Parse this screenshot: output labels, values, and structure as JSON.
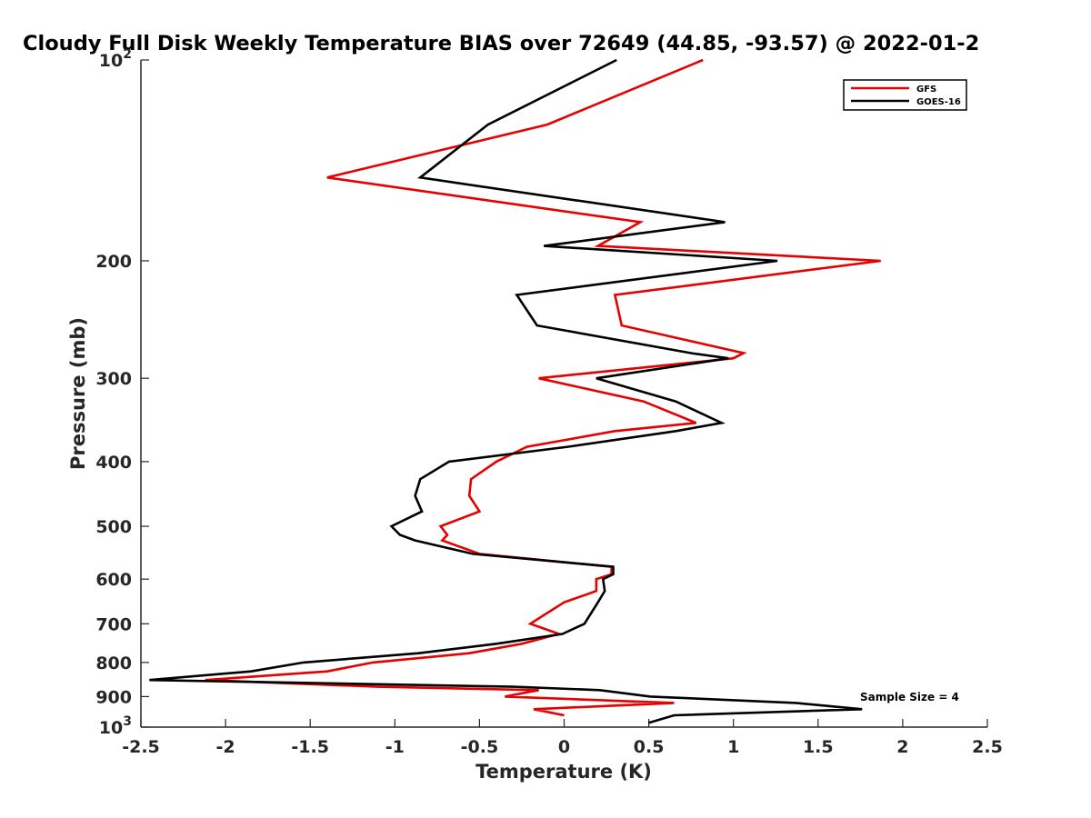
{
  "chart_data": {
    "type": "line",
    "title": "Cloudy Full Disk Weekly Temperature BIAS over 72649 (44.85, -93.57) @ 2022-01-2",
    "xlabel": "Temperature (K)",
    "ylabel": "Pressure (mb)",
    "xlim": [
      -2.5,
      2.5
    ],
    "ylim": [
      100,
      1000
    ],
    "y_scale": "log",
    "y_reversed": true,
    "grid": false,
    "legend_position": "top-right",
    "x_ticks": [
      {
        "value": -2.5,
        "label": "-2.5"
      },
      {
        "value": -2,
        "label": "-2"
      },
      {
        "value": -1.5,
        "label": "-1.5"
      },
      {
        "value": -1,
        "label": "-1"
      },
      {
        "value": -0.5,
        "label": "-0.5"
      },
      {
        "value": 0,
        "label": "0"
      },
      {
        "value": 0.5,
        "label": "0.5"
      },
      {
        "value": 1,
        "label": "1"
      },
      {
        "value": 1.5,
        "label": "1.5"
      },
      {
        "value": 2,
        "label": "2"
      },
      {
        "value": 2.5,
        "label": "2.5"
      }
    ],
    "y_ticks": [
      {
        "value": 100,
        "base": "10",
        "exp": "2"
      },
      {
        "value": 200,
        "base": "200",
        "exp": ""
      },
      {
        "value": 300,
        "base": "300",
        "exp": ""
      },
      {
        "value": 400,
        "base": "400",
        "exp": ""
      },
      {
        "value": 500,
        "base": "500",
        "exp": ""
      },
      {
        "value": 600,
        "base": "600",
        "exp": ""
      },
      {
        "value": 700,
        "base": "700",
        "exp": ""
      },
      {
        "value": 800,
        "base": "800",
        "exp": ""
      },
      {
        "value": 900,
        "base": "900",
        "exp": ""
      },
      {
        "value": 1000,
        "base": "10",
        "exp": "3"
      }
    ],
    "annotation": "Sample Size = 4",
    "series": [
      {
        "name": "GFS",
        "color": "#e60000",
        "points": [
          [
            0.82,
            100
          ],
          [
            -0.1,
            125
          ],
          [
            -1.4,
            150
          ],
          [
            0.45,
            175
          ],
          [
            0.2,
            190
          ],
          [
            1.87,
            200
          ],
          [
            0.3,
            225
          ],
          [
            0.34,
            250
          ],
          [
            1.06,
            275
          ],
          [
            1.0,
            280
          ],
          [
            -0.15,
            300
          ],
          [
            0.47,
            325
          ],
          [
            0.78,
            350
          ],
          [
            0.3,
            360
          ],
          [
            -0.22,
            380
          ],
          [
            -0.4,
            400
          ],
          [
            -0.55,
            425
          ],
          [
            -0.56,
            450
          ],
          [
            -0.5,
            475
          ],
          [
            -0.73,
            500
          ],
          [
            -0.69,
            515
          ],
          [
            -0.72,
            525
          ],
          [
            -0.5,
            550
          ],
          [
            0.28,
            575
          ],
          [
            0.28,
            590
          ],
          [
            0.19,
            600
          ],
          [
            0.19,
            625
          ],
          [
            0.0,
            650
          ],
          [
            -0.2,
            700
          ],
          [
            -0.03,
            725
          ],
          [
            -0.25,
            750
          ],
          [
            -0.56,
            775
          ],
          [
            -1.13,
            800
          ],
          [
            -1.4,
            825
          ],
          [
            -2.12,
            850
          ],
          [
            -1.1,
            870
          ],
          [
            -0.15,
            880
          ],
          [
            -0.35,
            900
          ],
          [
            0.65,
            920
          ],
          [
            -0.18,
            940
          ],
          [
            0.0,
            960
          ]
        ]
      },
      {
        "name": "GOES-16",
        "color": "#000000",
        "points": [
          [
            0.31,
            100
          ],
          [
            -0.45,
            125
          ],
          [
            -0.85,
            150
          ],
          [
            0.95,
            175
          ],
          [
            -0.12,
            190
          ],
          [
            1.26,
            200
          ],
          [
            -0.28,
            225
          ],
          [
            -0.16,
            250
          ],
          [
            0.75,
            275
          ],
          [
            0.97,
            280
          ],
          [
            0.19,
            300
          ],
          [
            0.66,
            325
          ],
          [
            0.93,
            350
          ],
          [
            0.66,
            360
          ],
          [
            0.02,
            380
          ],
          [
            -0.68,
            400
          ],
          [
            -0.85,
            425
          ],
          [
            -0.88,
            450
          ],
          [
            -0.84,
            475
          ],
          [
            -1.02,
            500
          ],
          [
            -0.97,
            515
          ],
          [
            -0.88,
            525
          ],
          [
            -0.54,
            550
          ],
          [
            0.29,
            575
          ],
          [
            0.29,
            590
          ],
          [
            0.23,
            600
          ],
          [
            0.24,
            625
          ],
          [
            0.2,
            650
          ],
          [
            0.12,
            700
          ],
          [
            -0.01,
            725
          ],
          [
            -0.4,
            750
          ],
          [
            -0.86,
            775
          ],
          [
            -1.54,
            800
          ],
          [
            -1.85,
            825
          ],
          [
            -2.45,
            850
          ],
          [
            -0.3,
            870
          ],
          [
            0.21,
            880
          ],
          [
            0.51,
            900
          ],
          [
            1.37,
            920
          ],
          [
            1.76,
            940
          ],
          [
            0.65,
            960
          ],
          [
            0.5,
            985
          ]
        ]
      }
    ]
  }
}
